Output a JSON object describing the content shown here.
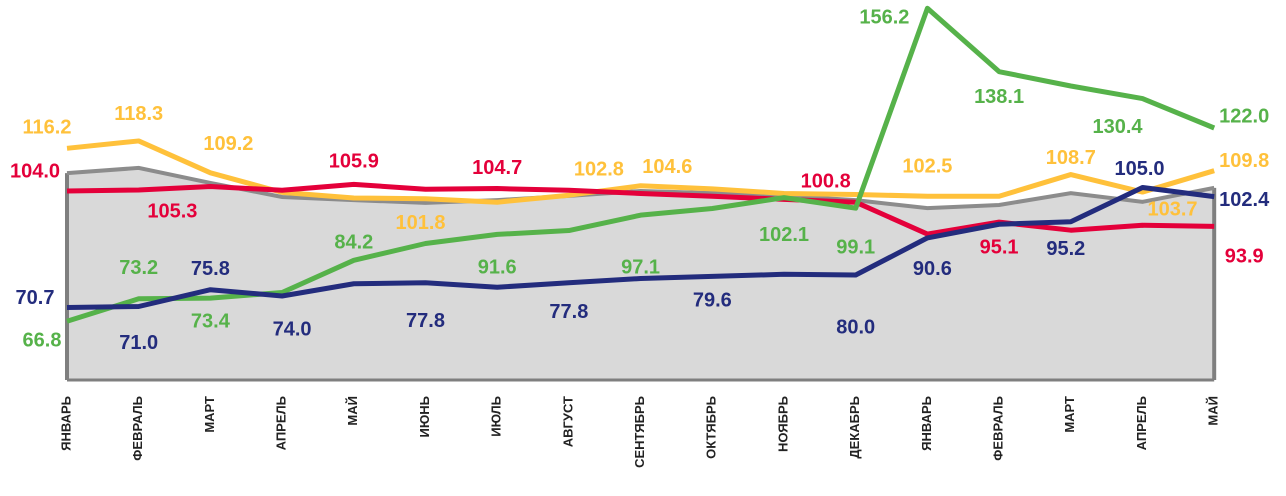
{
  "chart_data": {
    "type": "line",
    "categories": [
      "ЯНВАРЬ",
      "ФЕВРАЛЬ",
      "МАРТ",
      "АПРЕЛЬ",
      "МАЙ",
      "ИЮНЬ",
      "ИЮЛЬ",
      "АВГУСТ",
      "СЕНТЯБРЬ",
      "ОКТЯБРЬ",
      "НОЯБРЬ",
      "ДЕКАБРЬ",
      "ЯНВАРЬ",
      "ФЕВРАЛЬ",
      "МАРТ",
      "АПРЕЛЬ",
      "МАЙ"
    ],
    "ylim": [
      50,
      158
    ],
    "area": {
      "color": "#d9d9d9",
      "line_color": "#8c8c8c",
      "values": [
        109.1,
        110.6,
        106.3,
        102.3,
        101.4,
        100.6,
        101.4,
        102.6,
        104.0,
        103.4,
        102.6,
        101.4,
        99.1,
        100.0,
        103.4,
        100.9,
        104.9
      ]
    },
    "series": [
      {
        "color": "#ffc13b",
        "values": [
          116.2,
          118.3,
          109.2,
          103.6,
          102.0,
          101.8,
          100.8,
          102.8,
          105.5,
          104.6,
          103.3,
          103.0,
          102.5,
          102.5,
          108.7,
          103.7,
          109.8
        ],
        "value_labels": [
          "116.2",
          "118.3",
          "109.2",
          null,
          null,
          "101.8",
          null,
          "102.8",
          null,
          "104.6",
          null,
          null,
          "102.5",
          null,
          "108.7",
          "103.7",
          "109.8"
        ]
      },
      {
        "color": "#e4003a",
        "values": [
          104.0,
          104.3,
          105.3,
          104.2,
          105.9,
          104.5,
          104.7,
          104.2,
          103.3,
          102.5,
          101.6,
          100.8,
          91.7,
          95.1,
          92.8,
          94.2,
          93.9
        ],
        "value_labels": [
          "104.0",
          null,
          "105.3",
          null,
          "105.9",
          null,
          "104.7",
          null,
          null,
          null,
          null,
          "100.8",
          null,
          "95.1",
          null,
          null,
          "93.9"
        ]
      },
      {
        "color": "#56b24a",
        "values": [
          66.8,
          73.2,
          73.4,
          75.0,
          84.2,
          89.0,
          91.6,
          92.7,
          97.1,
          99.0,
          102.1,
          99.1,
          156.2,
          138.1,
          134.0,
          130.4,
          122.0
        ],
        "value_labels": [
          "66.8",
          "73.2",
          "73.4",
          null,
          "84.2",
          null,
          "91.6",
          null,
          "97.1",
          null,
          "102.1",
          "99.1",
          "156.2",
          "138.1",
          null,
          "130.4",
          "122.0"
        ]
      },
      {
        "color": "#232c7d",
        "values": [
          70.7,
          71.0,
          75.8,
          74.0,
          77.5,
          77.8,
          76.5,
          77.8,
          79.0,
          79.6,
          80.2,
          80.0,
          90.6,
          94.5,
          95.2,
          105.0,
          102.4
        ],
        "value_labels": [
          "70.7",
          "71.0",
          "75.8",
          "74.0",
          null,
          "77.8",
          null,
          "77.8",
          null,
          "79.6",
          null,
          "80.0",
          "90.6",
          null,
          "95.2",
          "105.0",
          "102.4"
        ]
      }
    ]
  }
}
